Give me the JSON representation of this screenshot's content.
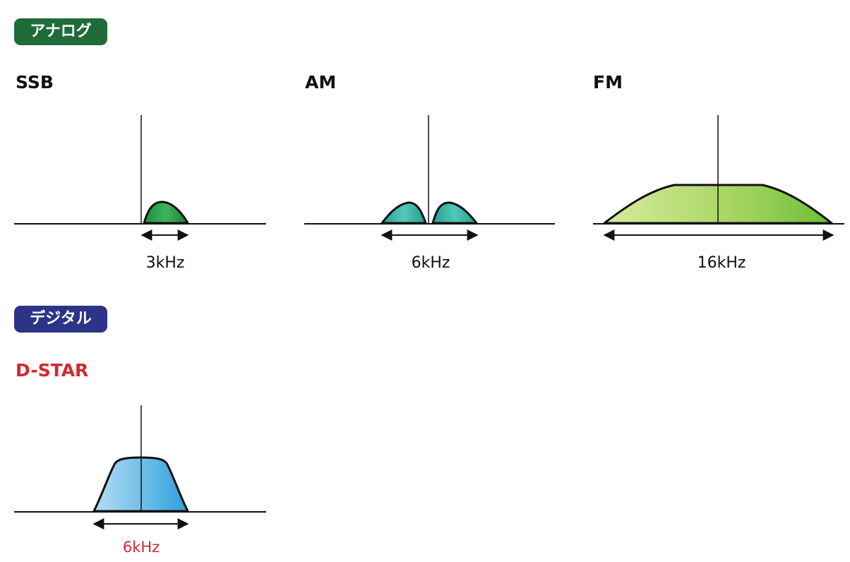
{
  "colors": {
    "analog_badge": "#1f6b3a",
    "digital_badge": "#2c3488",
    "dstar_text": "#d3282f",
    "text": "#111111",
    "axis": "#111111"
  },
  "analog": {
    "badge": "アナログ",
    "panels": [
      {
        "title": "SSB",
        "bandwidth_label": "3kHz",
        "bandwidth_khz": 3
      },
      {
        "title": "AM",
        "bandwidth_label": "6kHz",
        "bandwidth_khz": 6
      },
      {
        "title": "FM",
        "bandwidth_label": "16kHz",
        "bandwidth_khz": 16
      }
    ]
  },
  "digital": {
    "badge": "デジタル",
    "panels": [
      {
        "title": "D-STAR",
        "bandwidth_label": "6kHz",
        "bandwidth_khz": 6
      }
    ]
  }
}
